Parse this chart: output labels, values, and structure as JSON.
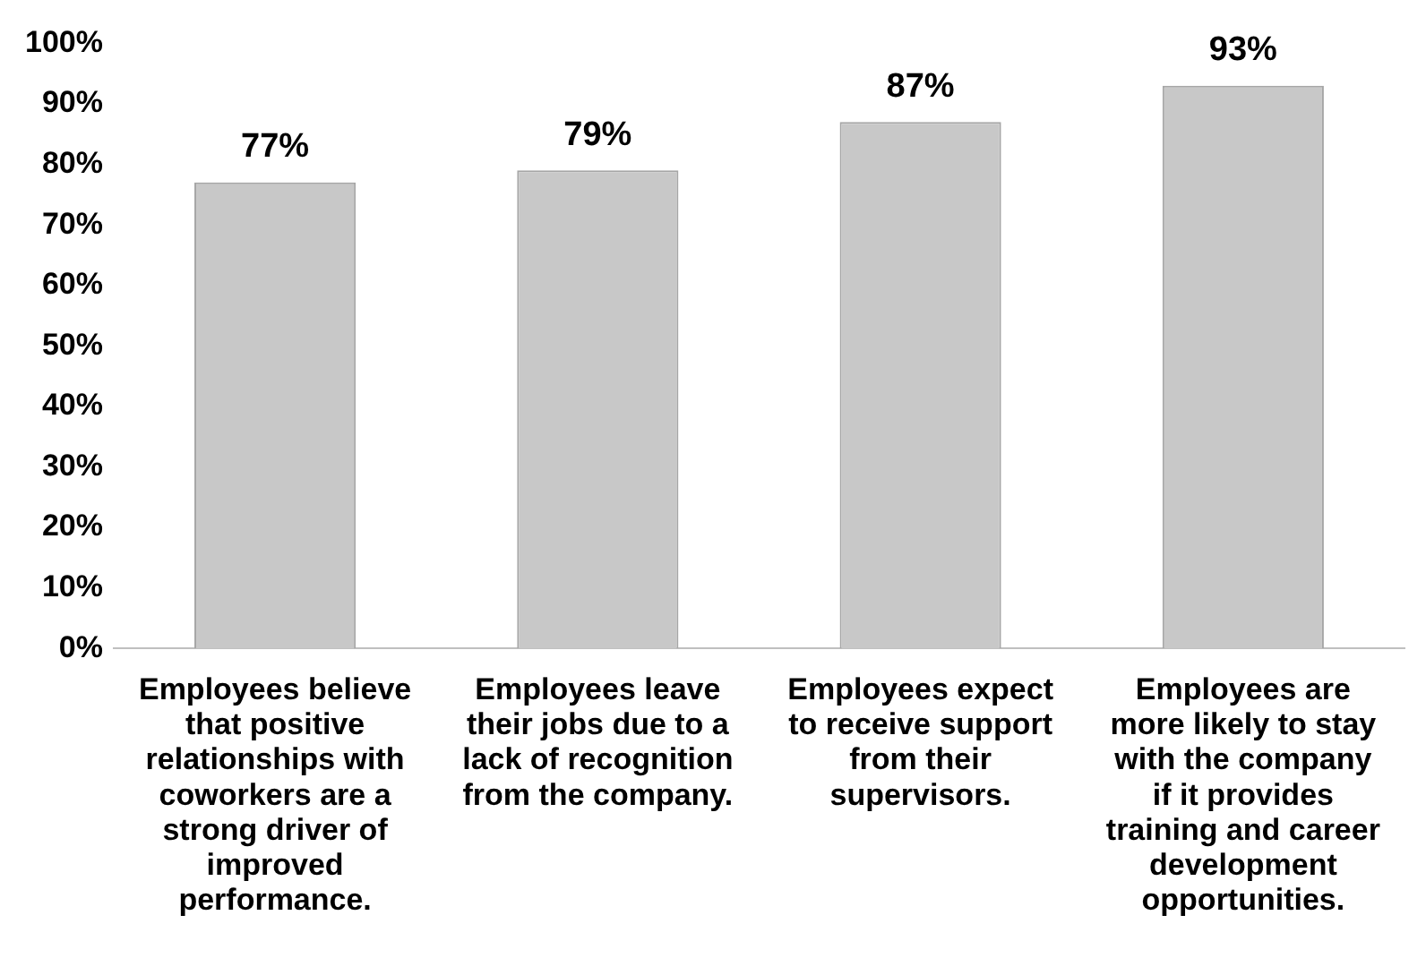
{
  "chart_data": {
    "type": "bar",
    "categories": [
      "Employees believe that positive relationships with coworkers are a strong driver of improved performance.",
      "Employees leave their jobs due to a lack of recognition from the company.",
      "Employees expect to receive support from their supervisors.",
      "Employees are more likely to stay with the company if it provides training and career development opportunities."
    ],
    "values": [
      77,
      79,
      87,
      93
    ],
    "value_labels": [
      "77%",
      "79%",
      "87%",
      "93%"
    ],
    "color": "#c8c8c8",
    "ylim": [
      0,
      100
    ],
    "yticks": [
      {
        "value": 0,
        "label": "0%"
      },
      {
        "value": 10,
        "label": "10%"
      },
      {
        "value": 20,
        "label": "20%"
      },
      {
        "value": 30,
        "label": "30%"
      },
      {
        "value": 40,
        "label": "40%"
      },
      {
        "value": 50,
        "label": "50%"
      },
      {
        "value": 60,
        "label": "60%"
      },
      {
        "value": 70,
        "label": "70%"
      },
      {
        "value": 80,
        "label": "80%"
      },
      {
        "value": 90,
        "label": "90%"
      },
      {
        "value": 100,
        "label": "100%"
      }
    ],
    "grid": false,
    "legend": false
  }
}
